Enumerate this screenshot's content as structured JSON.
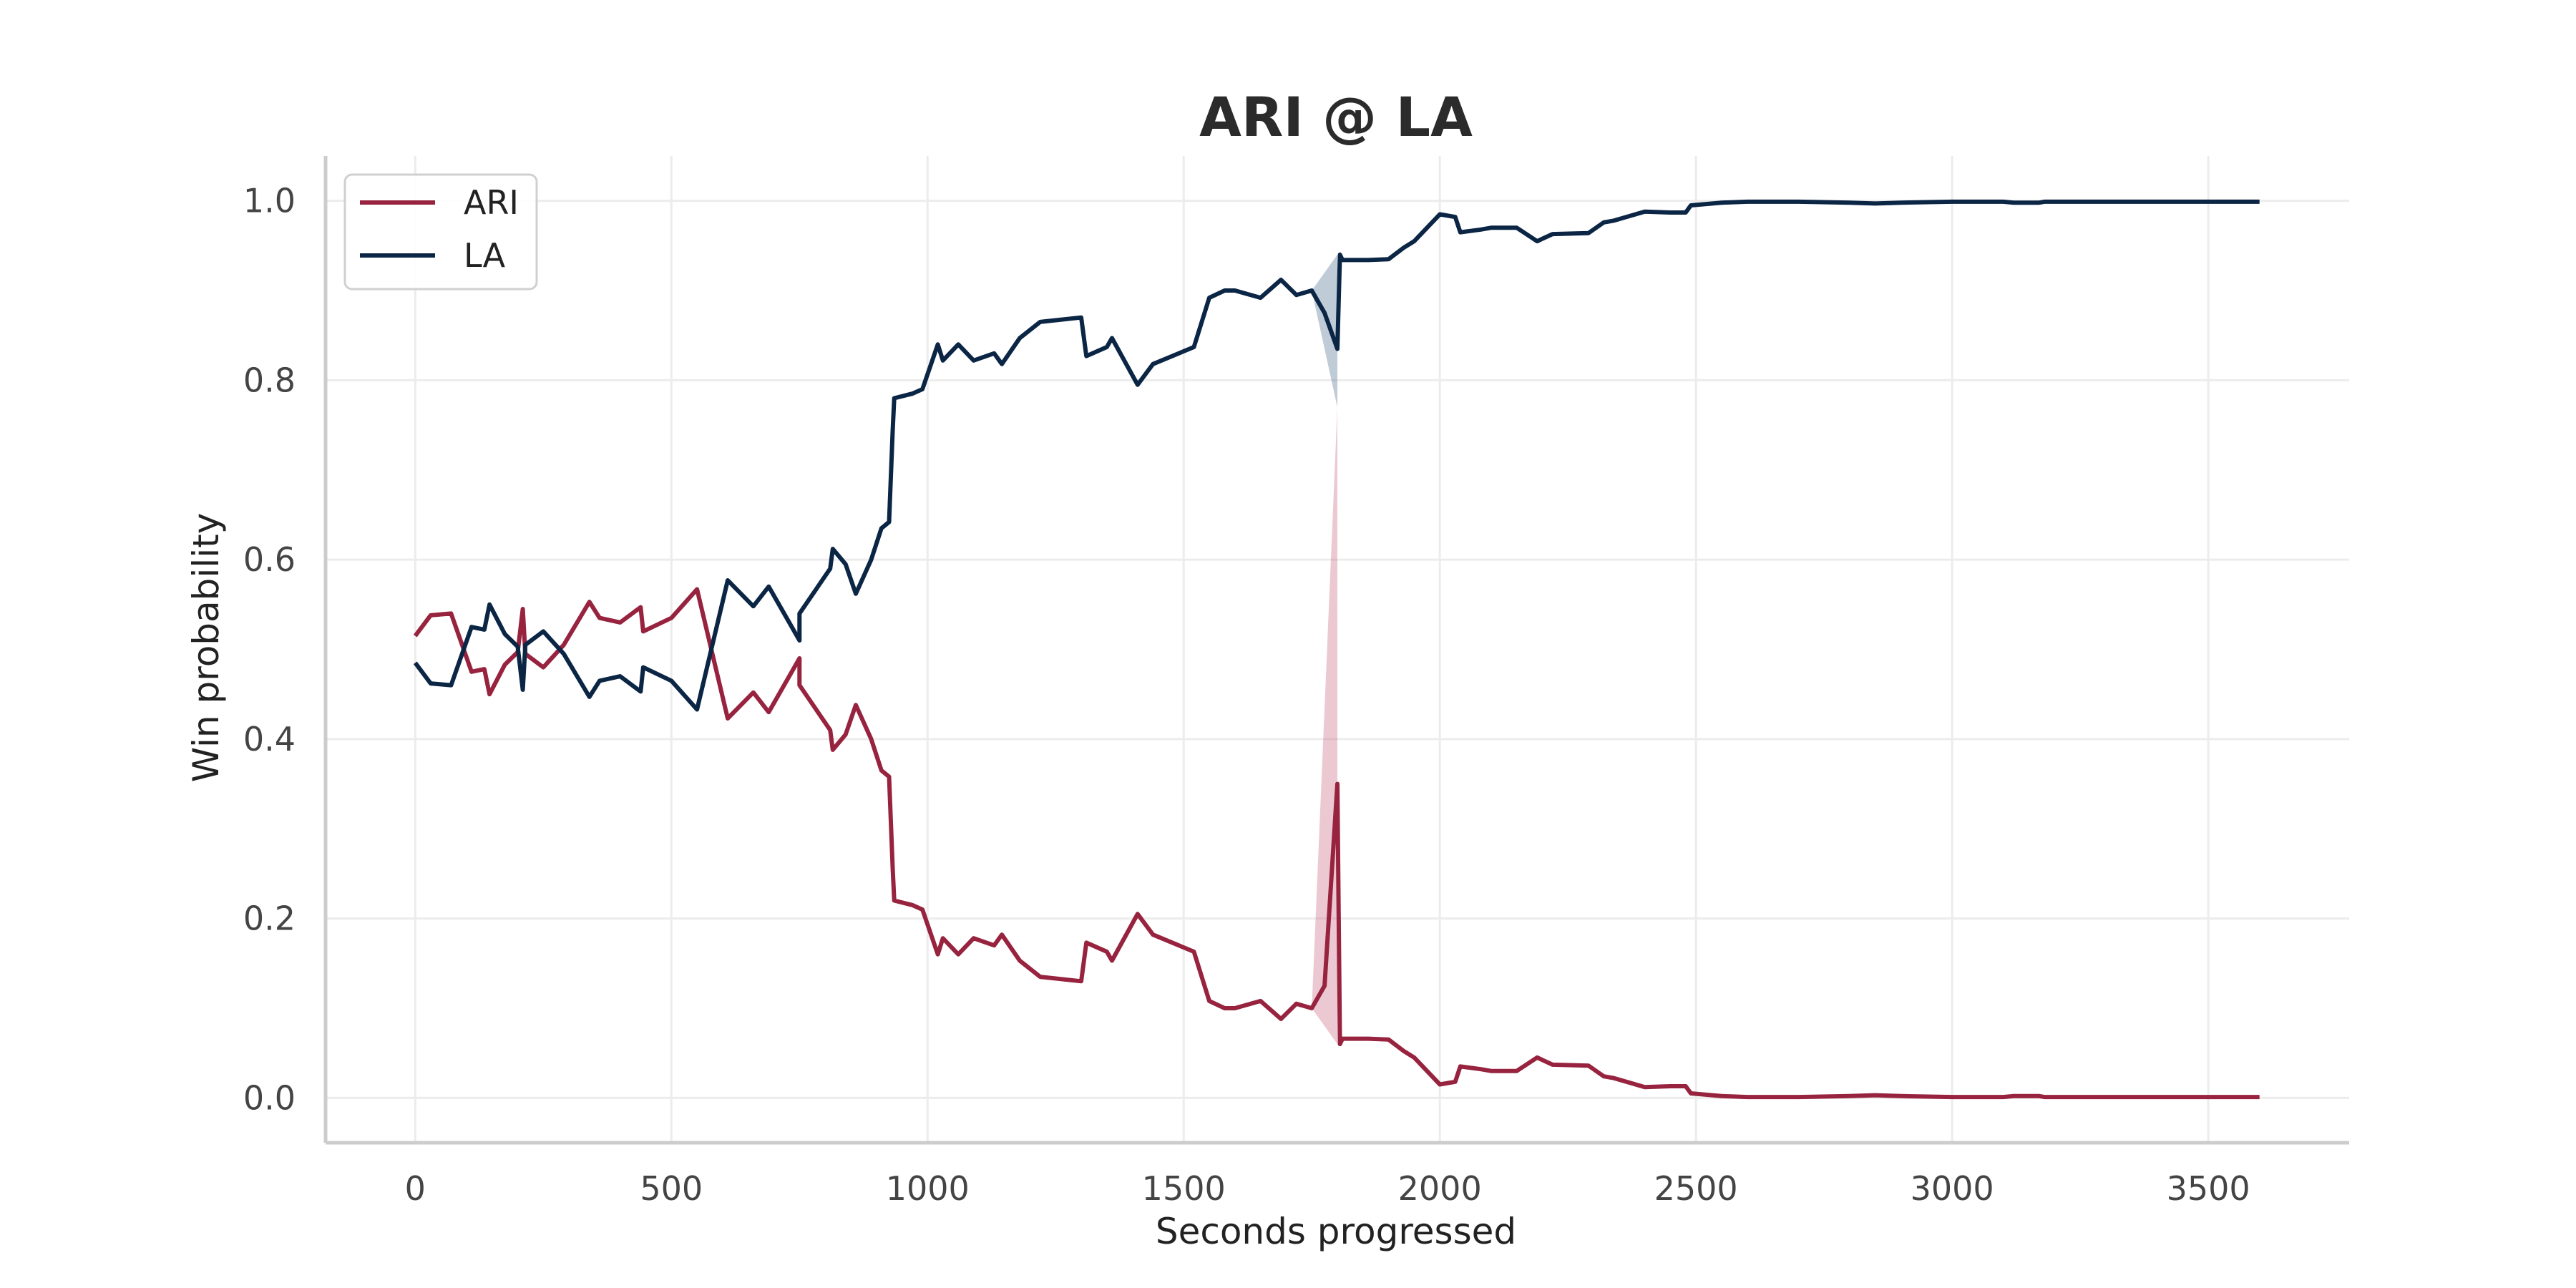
{
  "chart_data": {
    "type": "line",
    "title": "ARI @ LA",
    "xlabel": "Seconds progressed",
    "ylabel": "Win probability",
    "xlim": [
      -175,
      3775
    ],
    "ylim": [
      -0.05,
      1.05
    ],
    "xticks": [
      0,
      500,
      1000,
      1500,
      2000,
      2500,
      3000,
      3500
    ],
    "yticks": [
      "0.0",
      "0.2",
      "0.4",
      "0.6",
      "0.8",
      "1.0"
    ],
    "grid": true,
    "legend_position": "top-left",
    "series": [
      {
        "name": "ARI",
        "color": "#97233f",
        "points": [
          [
            0,
            0.515
          ],
          [
            30,
            0.538
          ],
          [
            70,
            0.54
          ],
          [
            110,
            0.475
          ],
          [
            135,
            0.478
          ],
          [
            145,
            0.45
          ],
          [
            175,
            0.483
          ],
          [
            200,
            0.497
          ],
          [
            210,
            0.545
          ],
          [
            215,
            0.495
          ],
          [
            250,
            0.48
          ],
          [
            290,
            0.505
          ],
          [
            340,
            0.553
          ],
          [
            360,
            0.535
          ],
          [
            400,
            0.53
          ],
          [
            440,
            0.547
          ],
          [
            445,
            0.52
          ],
          [
            500,
            0.535
          ],
          [
            550,
            0.567
          ],
          [
            610,
            0.423
          ],
          [
            660,
            0.452
          ],
          [
            690,
            0.43
          ],
          [
            750,
            0.49
          ],
          [
            750,
            0.46
          ],
          [
            810,
            0.41
          ],
          [
            815,
            0.388
          ],
          [
            840,
            0.405
          ],
          [
            860,
            0.438
          ],
          [
            890,
            0.4
          ],
          [
            910,
            0.365
          ],
          [
            925,
            0.358
          ],
          [
            932,
            0.255
          ],
          [
            935,
            0.22
          ],
          [
            970,
            0.215
          ],
          [
            990,
            0.21
          ],
          [
            1020,
            0.16
          ],
          [
            1030,
            0.178
          ],
          [
            1060,
            0.16
          ],
          [
            1090,
            0.178
          ],
          [
            1130,
            0.17
          ],
          [
            1145,
            0.182
          ],
          [
            1180,
            0.153
          ],
          [
            1220,
            0.135
          ],
          [
            1300,
            0.13
          ],
          [
            1310,
            0.173
          ],
          [
            1350,
            0.163
          ],
          [
            1360,
            0.153
          ],
          [
            1410,
            0.205
          ],
          [
            1440,
            0.182
          ],
          [
            1520,
            0.163
          ],
          [
            1550,
            0.108
          ],
          [
            1580,
            0.1
          ],
          [
            1600,
            0.1
          ],
          [
            1650,
            0.108
          ],
          [
            1690,
            0.088
          ],
          [
            1720,
            0.105
          ],
          [
            1750,
            0.1
          ],
          [
            1775,
            0.125
          ],
          [
            1800,
            0.35
          ],
          [
            1805,
            0.06
          ],
          [
            1810,
            0.066
          ],
          [
            1860,
            0.066
          ],
          [
            1900,
            0.065
          ],
          [
            1930,
            0.052
          ],
          [
            1950,
            0.045
          ],
          [
            2000,
            0.015
          ],
          [
            2030,
            0.018
          ],
          [
            2040,
            0.035
          ],
          [
            2080,
            0.032
          ],
          [
            2100,
            0.03
          ],
          [
            2150,
            0.03
          ],
          [
            2190,
            0.045
          ],
          [
            2220,
            0.037
          ],
          [
            2290,
            0.036
          ],
          [
            2320,
            0.024
          ],
          [
            2340,
            0.022
          ],
          [
            2400,
            0.012
          ],
          [
            2450,
            0.013
          ],
          [
            2480,
            0.013
          ],
          [
            2490,
            0.005
          ],
          [
            2550,
            0.002
          ],
          [
            2600,
            0.001
          ],
          [
            2700,
            0.001
          ],
          [
            2800,
            0.002
          ],
          [
            2850,
            0.003
          ],
          [
            2900,
            0.002
          ],
          [
            3000,
            0.001
          ],
          [
            3100,
            0.001
          ],
          [
            3120,
            0.002
          ],
          [
            3170,
            0.002
          ],
          [
            3180,
            0.001
          ],
          [
            3600,
            0.001
          ]
        ]
      },
      {
        "name": "LA",
        "color": "#0b2545",
        "points": [
          [
            0,
            0.485
          ],
          [
            30,
            0.462
          ],
          [
            70,
            0.46
          ],
          [
            110,
            0.525
          ],
          [
            135,
            0.522
          ],
          [
            145,
            0.55
          ],
          [
            175,
            0.517
          ],
          [
            200,
            0.503
          ],
          [
            210,
            0.455
          ],
          [
            215,
            0.505
          ],
          [
            250,
            0.52
          ],
          [
            290,
            0.495
          ],
          [
            340,
            0.447
          ],
          [
            360,
            0.465
          ],
          [
            400,
            0.47
          ],
          [
            440,
            0.453
          ],
          [
            445,
            0.48
          ],
          [
            500,
            0.465
          ],
          [
            550,
            0.433
          ],
          [
            610,
            0.577
          ],
          [
            660,
            0.548
          ],
          [
            690,
            0.57
          ],
          [
            750,
            0.51
          ],
          [
            750,
            0.54
          ],
          [
            810,
            0.59
          ],
          [
            815,
            0.612
          ],
          [
            840,
            0.595
          ],
          [
            860,
            0.562
          ],
          [
            890,
            0.6
          ],
          [
            910,
            0.635
          ],
          [
            925,
            0.642
          ],
          [
            932,
            0.745
          ],
          [
            935,
            0.78
          ],
          [
            970,
            0.785
          ],
          [
            990,
            0.79
          ],
          [
            1020,
            0.84
          ],
          [
            1030,
            0.822
          ],
          [
            1060,
            0.84
          ],
          [
            1090,
            0.822
          ],
          [
            1130,
            0.83
          ],
          [
            1145,
            0.818
          ],
          [
            1180,
            0.847
          ],
          [
            1220,
            0.865
          ],
          [
            1300,
            0.87
          ],
          [
            1310,
            0.827
          ],
          [
            1350,
            0.837
          ],
          [
            1360,
            0.847
          ],
          [
            1410,
            0.795
          ],
          [
            1440,
            0.818
          ],
          [
            1520,
            0.837
          ],
          [
            1550,
            0.892
          ],
          [
            1580,
            0.9
          ],
          [
            1600,
            0.9
          ],
          [
            1650,
            0.892
          ],
          [
            1690,
            0.912
          ],
          [
            1720,
            0.895
          ],
          [
            1750,
            0.9
          ],
          [
            1775,
            0.875
          ],
          [
            1800,
            0.835
          ],
          [
            1805,
            0.94
          ],
          [
            1810,
            0.934
          ],
          [
            1860,
            0.934
          ],
          [
            1900,
            0.935
          ],
          [
            1930,
            0.948
          ],
          [
            1950,
            0.955
          ],
          [
            2000,
            0.985
          ],
          [
            2030,
            0.982
          ],
          [
            2040,
            0.965
          ],
          [
            2080,
            0.968
          ],
          [
            2100,
            0.97
          ],
          [
            2150,
            0.97
          ],
          [
            2190,
            0.955
          ],
          [
            2220,
            0.963
          ],
          [
            2290,
            0.964
          ],
          [
            2320,
            0.976
          ],
          [
            2340,
            0.978
          ],
          [
            2400,
            0.988
          ],
          [
            2450,
            0.987
          ],
          [
            2480,
            0.987
          ],
          [
            2490,
            0.995
          ],
          [
            2550,
            0.998
          ],
          [
            2600,
            0.999
          ],
          [
            2700,
            0.999
          ],
          [
            2800,
            0.998
          ],
          [
            2850,
            0.997
          ],
          [
            2900,
            0.998
          ],
          [
            3000,
            0.999
          ],
          [
            3100,
            0.999
          ],
          [
            3120,
            0.998
          ],
          [
            3170,
            0.998
          ],
          [
            3180,
            0.999
          ],
          [
            3600,
            0.999
          ]
        ]
      }
    ],
    "uncertainty_bands": [
      {
        "series": "ARI",
        "color": "#c9657e",
        "lower": [
          [
            1750,
            0.1
          ],
          [
            1800,
            0.06
          ]
        ],
        "upper": [
          [
            1750,
            0.1
          ],
          [
            1800,
            0.77
          ]
        ]
      },
      {
        "series": "LA",
        "color": "#4a6a90",
        "lower": [
          [
            1750,
            0.9
          ],
          [
            1800,
            0.77
          ]
        ],
        "upper": [
          [
            1750,
            0.9
          ],
          [
            1800,
            0.94
          ]
        ]
      }
    ]
  }
}
